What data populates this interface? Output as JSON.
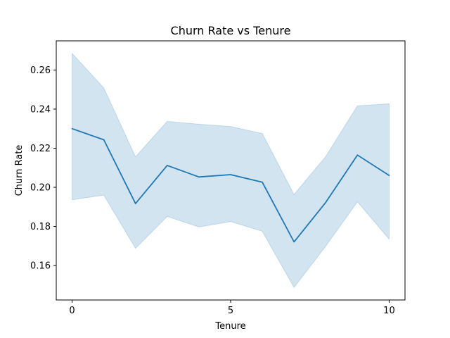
{
  "chart_data": {
    "type": "line",
    "title": "Churn Rate vs Tenure",
    "xlabel": "Tenure",
    "ylabel": "Churn Rate",
    "x": [
      0,
      1,
      2,
      3,
      4,
      5,
      6,
      7,
      8,
      9,
      10
    ],
    "series": [
      {
        "values": [
          0.23,
          0.2243,
          0.1917,
          0.2112,
          0.2053,
          0.2065,
          0.2026,
          0.1721,
          0.1923,
          0.2165,
          0.2061
        ],
        "ci_lower": [
          0.1936,
          0.196,
          0.1688,
          0.1851,
          0.1797,
          0.1825,
          0.1775,
          0.1488,
          0.1699,
          0.1926,
          0.1735
        ],
        "ci_upper": [
          0.2685,
          0.2508,
          0.2156,
          0.2337,
          0.2323,
          0.2311,
          0.2275,
          0.1963,
          0.2158,
          0.2417,
          0.2427
        ],
        "color": "#1f77b4",
        "band_color": "#1f77b4"
      }
    ],
    "xlim": [
      -0.5,
      10.5
    ],
    "ylim": [
      0.1424,
      0.2749
    ],
    "xticks": [
      0,
      5,
      10
    ],
    "yticks": [
      0.16,
      0.18,
      0.2,
      0.22,
      0.24,
      0.26
    ],
    "xtick_labels": [
      "0",
      "5",
      "10"
    ],
    "ytick_labels": [
      "0.16",
      "0.18",
      "0.20",
      "0.22",
      "0.24",
      "0.26"
    ],
    "grid": false,
    "legend": "none"
  }
}
